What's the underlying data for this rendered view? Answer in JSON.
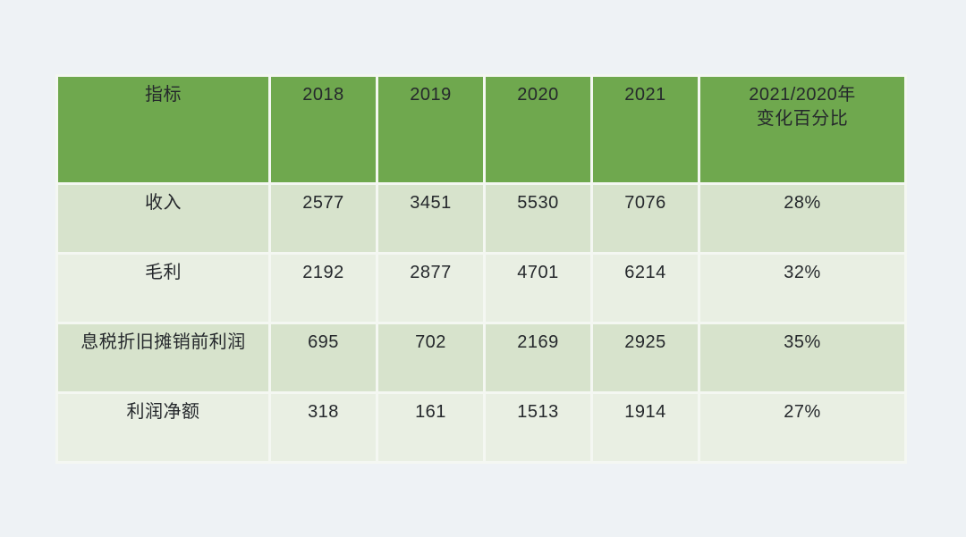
{
  "colors": {
    "page_background": "#eef2f5",
    "header_green": "#6fa84e",
    "row_green_dark": "#d7e3cc",
    "row_green_light": "#e9efe3",
    "cell_gap": "#f4f7f2",
    "text": "#25282c"
  },
  "header": {
    "cells": [
      "指标",
      "2018",
      "2019",
      "2020",
      "2021",
      "2021/2020年\n变化百分比"
    ]
  },
  "chart_data": {
    "type": "table",
    "title": "",
    "columns": [
      "指标",
      "2018",
      "2019",
      "2020",
      "2021",
      "2021/2020年变化百分比"
    ],
    "rows": [
      [
        "收入",
        "2577",
        "3451",
        "5530",
        "7076",
        "28%"
      ],
      [
        "毛利",
        "2192",
        "2877",
        "4701",
        "6214",
        "32%"
      ],
      [
        "息税折旧摊销前利润",
        "695",
        "702",
        "2169",
        "2925",
        "35%"
      ],
      [
        "利润净额",
        "318",
        "161",
        "1513",
        "1914",
        "27%"
      ]
    ]
  }
}
